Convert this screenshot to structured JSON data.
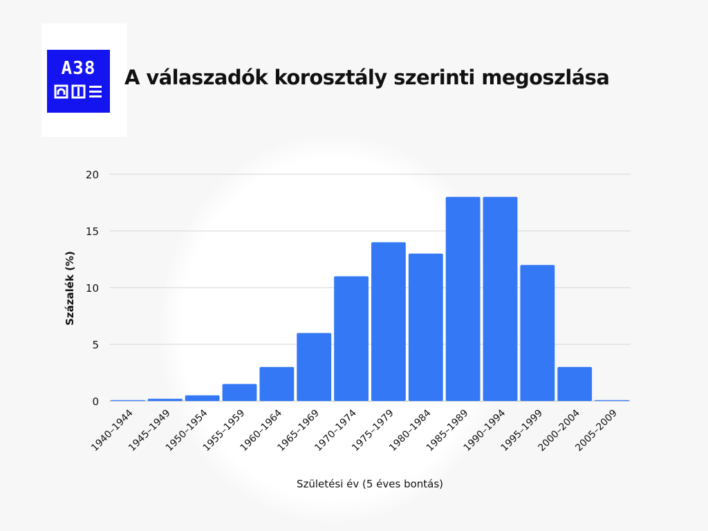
{
  "header": {
    "title": "A válaszadók korosztály szerinti megoszlása",
    "logo_text": "A38"
  },
  "colors": {
    "bar": "#3478f6",
    "logo_bg": "#1414f0",
    "grid": "#d6d6d6",
    "text": "#111111"
  },
  "chart_data": {
    "type": "bar",
    "title": "A válaszadók korosztály szerinti megoszlása",
    "xlabel": "Születési év (5 éves bontás)",
    "ylabel": "Százalék (%)",
    "ylim": [
      0,
      20
    ],
    "yticks": [
      0,
      5,
      10,
      15,
      20
    ],
    "grid": true,
    "categories": [
      "1940–1944",
      "1945–1949",
      "1950–1954",
      "1955–1959",
      "1960–1964",
      "1965–1969",
      "1970–1974",
      "1975–1979",
      "1980–1984",
      "1985–1989",
      "1990–1994",
      "1995–1999",
      "2000–2004",
      "2005–2009"
    ],
    "values": [
      0.05,
      0.2,
      0.5,
      1.5,
      3,
      6,
      11,
      14,
      13,
      18,
      18,
      12,
      3,
      0.05
    ]
  }
}
